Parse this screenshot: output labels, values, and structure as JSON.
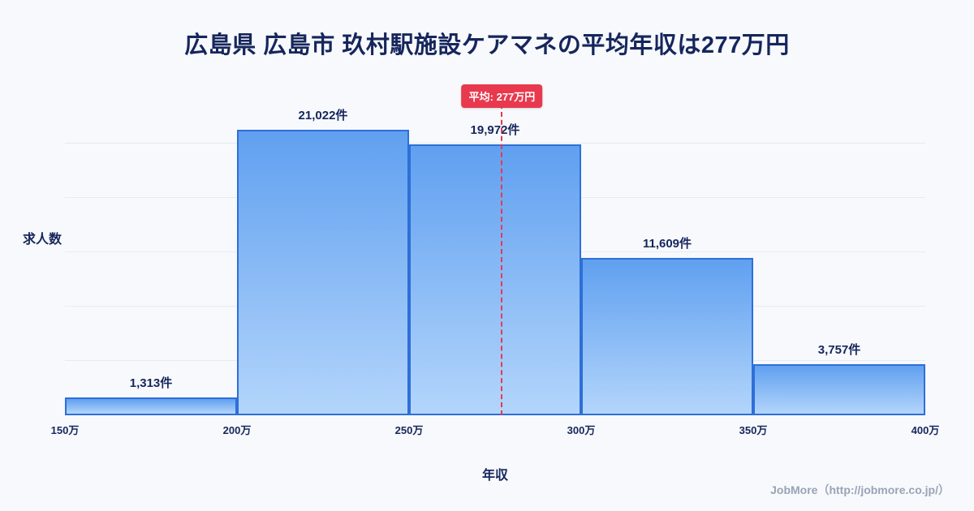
{
  "page": {
    "title": "広島県 広島市 玖村駅施設ケアマネの平均年収は277万円",
    "footer": "JobMore（http://jobmore.co.jp/）"
  },
  "chart_data": {
    "type": "bar",
    "title": "広島県 広島市 玖村駅施設ケアマネの平均年収は277万円",
    "xlabel": "年収",
    "ylabel": "求人数",
    "x_ticks": [
      "150万",
      "200万",
      "250万",
      "300万",
      "350万",
      "400万"
    ],
    "bins": [
      "150万-200万",
      "200万-250万",
      "250万-300万",
      "300万-350万",
      "350万-400万"
    ],
    "values": [
      1313,
      21022,
      19972,
      11609,
      3757
    ],
    "value_labels": [
      "1,313件",
      "21,022件",
      "19,972件",
      "11,609件",
      "3,757件"
    ],
    "x_range": [
      150,
      400
    ],
    "ylim": [
      0,
      22000
    ],
    "grid_step": 4000,
    "grid": true,
    "legend_position": "none",
    "mean": {
      "value": 277,
      "label": "平均: 277万円"
    },
    "colors": {
      "bar_top": "#60a0f0",
      "bar_bottom": "#b3d5fb",
      "bar_border": "#2e6fd8",
      "mean_line": "#e8394e",
      "badge_bg": "#e8394e",
      "badge_text": "#ffffff",
      "title_color": "#16265c",
      "background": "#f7f9fc"
    }
  }
}
